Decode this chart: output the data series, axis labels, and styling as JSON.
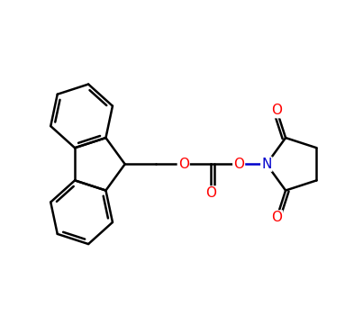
{
  "bg": "#ffffff",
  "bc": "#000000",
  "oc": "#ff0000",
  "nc": "#0000cc",
  "lw": 1.8,
  "fs": 11,
  "xlim": [
    -0.3,
    10.5
  ],
  "ylim": [
    0.5,
    9.0
  ]
}
